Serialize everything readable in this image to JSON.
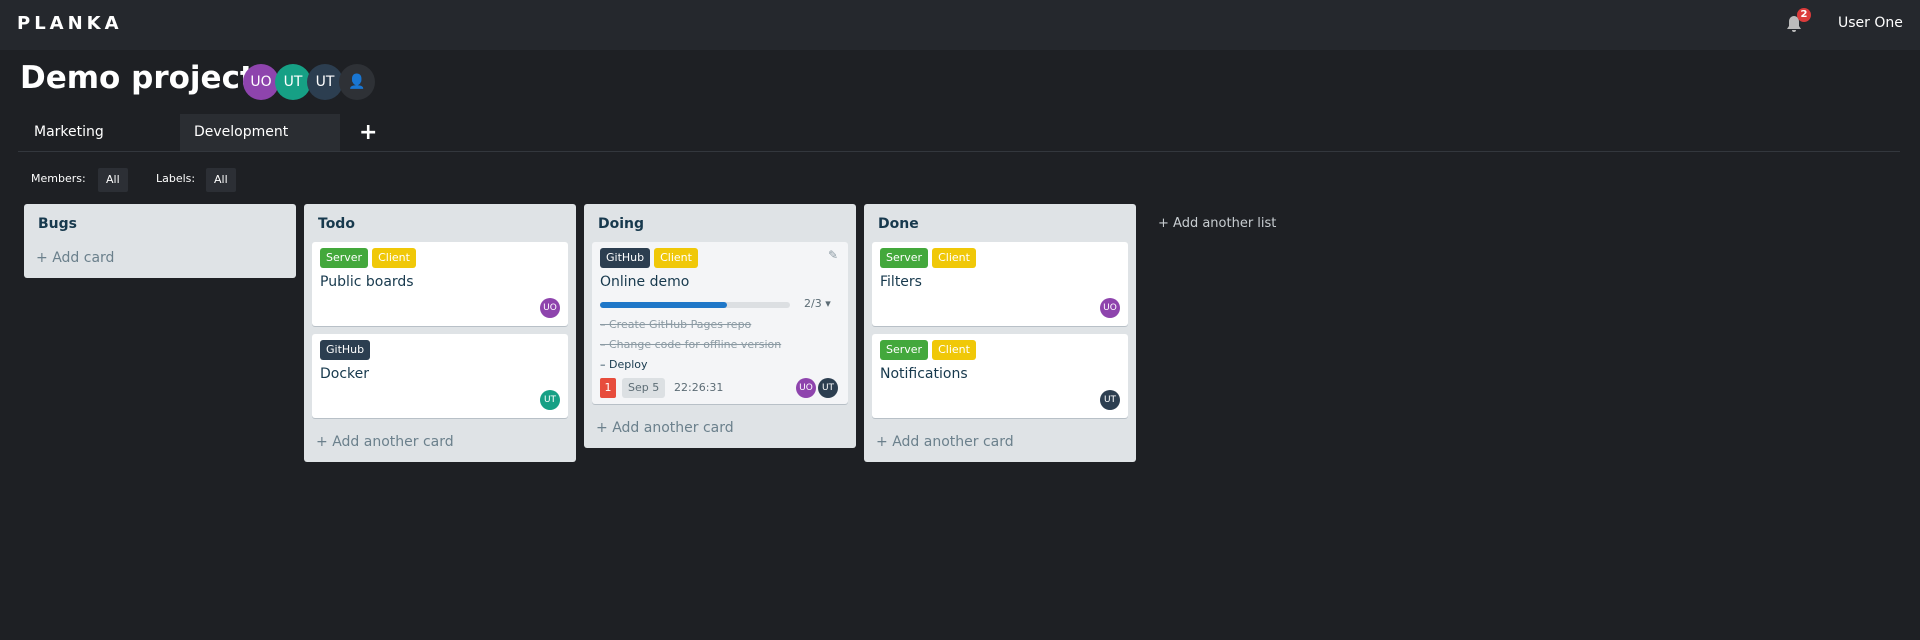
{
  "app": {
    "logo": "PLANKA",
    "notifications": "2",
    "user": "User One"
  },
  "project": {
    "title": "Demo project",
    "members": [
      {
        "initials": "UO",
        "color": "#8e44ad"
      },
      {
        "initials": "UT",
        "color": "#16a085"
      },
      {
        "initials": "UT",
        "color": "#2c3e50"
      }
    ]
  },
  "tabs": [
    {
      "label": "Marketing"
    },
    {
      "label": "Development",
      "active": true
    }
  ],
  "filters": {
    "members_label": "Members:",
    "members_value": "All",
    "labels_label": "Labels:",
    "labels_value": "All"
  },
  "label_colors": {
    "Server": "#43a83c",
    "Client": "#f0c808",
    "GitHub": "#2c3e50"
  },
  "lists": [
    {
      "name": "Bugs",
      "add": "Add card"
    },
    {
      "name": "Todo",
      "add": "Add another card",
      "cards": [
        {
          "labels": [
            "Server",
            "Client"
          ],
          "title": "Public boards",
          "member": "UO"
        },
        {
          "labels": [
            "GitHub"
          ],
          "title": "Docker",
          "member": "UT"
        }
      ]
    },
    {
      "name": "Doing",
      "add": "Add another card",
      "cards": [
        {
          "labels": [
            "GitHub",
            "Client"
          ],
          "title": "Online demo",
          "progress": "2/3",
          "progress_fraction": 0.67,
          "tasks": [
            {
              "text": "Create GitHub Pages repo",
              "done": true
            },
            {
              "text": "Change code for offline version",
              "done": true
            },
            {
              "text": "Deploy",
              "done": false
            }
          ],
          "comments": "1",
          "due": "Sep 5",
          "timer": "22:26:31",
          "members": [
            "UO",
            "UT"
          ]
        }
      ]
    },
    {
      "name": "Done",
      "add": "Add another card",
      "cards": [
        {
          "labels": [
            "Server",
            "Client"
          ],
          "title": "Filters",
          "member": "UO"
        },
        {
          "labels": [
            "Server",
            "Client"
          ],
          "title": "Notifications",
          "member": "UT"
        }
      ]
    }
  ],
  "add_list": "Add another list"
}
